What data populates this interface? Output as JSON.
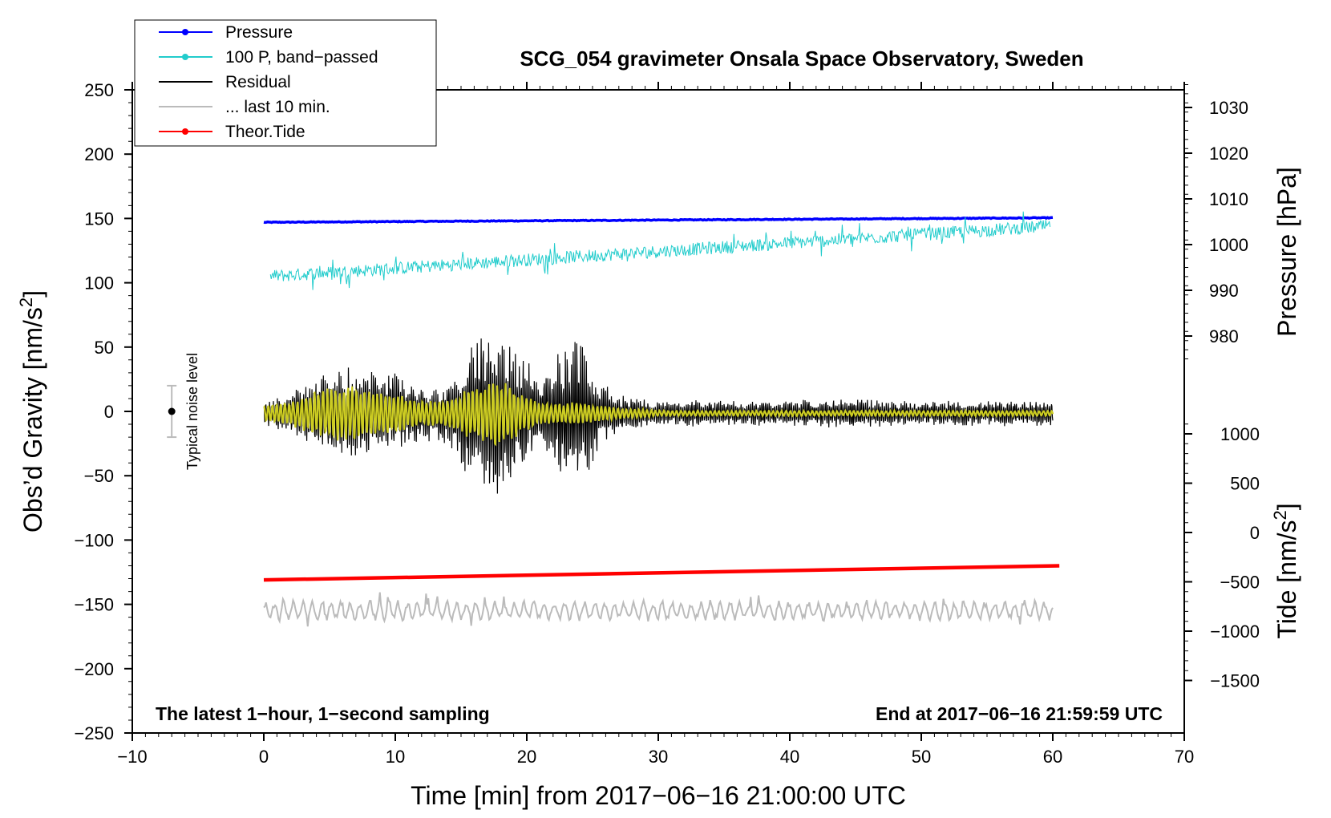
{
  "chart_data": {
    "type": "line",
    "title": "SCG_054 gravimeter Onsala Space Observatory, Sweden",
    "xlabel": "Time [min] from 2017−06−16 21:00:00 UTC",
    "ylabel": "Obs’d Gravity [nm/s",
    "ylabel_sup": "2",
    "ylabel_close": "]",
    "y2label": "Pressure [hPa]",
    "y3label": "Tide [nm/s",
    "y3label_sup": "2",
    "y3label_close": "]",
    "xlim": [
      -10,
      70
    ],
    "ylim": [
      -250,
      250
    ],
    "x_ticks": [
      "−10",
      "0",
      "10",
      "20",
      "30",
      "40",
      "50",
      "60",
      "70"
    ],
    "y_ticks": [
      "250",
      "200",
      "150",
      "100",
      "50",
      "0",
      "−50",
      "−100",
      "−150",
      "−200",
      "−250"
    ],
    "pressure_axis": {
      "ticks": [
        "1030",
        "1020",
        "1010",
        "1000",
        "990",
        "980"
      ],
      "values": [
        1030,
        1020,
        1010,
        1000,
        990,
        980
      ]
    },
    "tide_axis": {
      "ticks": [
        "1000",
        "500",
        "0",
        "−500",
        "−1000",
        "−1500"
      ],
      "values": [
        1000,
        500,
        0,
        -500,
        -1000,
        -1500
      ]
    },
    "note_left": "The latest 1−hour, 1−second sampling",
    "note_right": "End at 2017−06−16 21:59:59 UTC",
    "noise_label": "Typical noise level",
    "noise_bar": {
      "x": -7,
      "center": 0,
      "half_range": 20
    },
    "legend": [
      {
        "label": "Pressure",
        "color": "#0000ff",
        "marker": true
      },
      {
        "label": "100 P, band−passed",
        "color": "#22cccc",
        "marker": true
      },
      {
        "label": "Residual",
        "color": "#000000",
        "marker": false
      },
      {
        "label": "... last 10 min.",
        "color": "#bbbbbb",
        "marker": false
      },
      {
        "label": "Theor.Tide",
        "color": "#ff0000",
        "marker": true
      }
    ],
    "series": [
      {
        "name": "Pressure",
        "color": "#0000ff",
        "x_range": [
          0,
          60
        ],
        "start": 147,
        "end": 150.5,
        "style": "linear"
      },
      {
        "name": "100 P, band−passed",
        "color": "#22cccc",
        "x_range": [
          0.5,
          59.8
        ],
        "start": 105,
        "end": 144,
        "noise": 5,
        "style": "noisy"
      },
      {
        "name": "Theor.Tide",
        "color": "#ff0000",
        "x_range": [
          0,
          60.5
        ],
        "start": -131,
        "end": -120,
        "style": "linear"
      },
      {
        "name": "Residual",
        "color": "#000000",
        "x_range": [
          0,
          60
        ],
        "style": "envelope",
        "envelope_t": [
          0,
          2,
          4,
          6,
          8,
          10,
          12,
          14,
          15.5,
          16.5,
          17.5,
          18.5,
          19.5,
          21,
          22.5,
          23.5,
          24.5,
          25.5,
          27,
          29,
          31,
          33,
          36,
          40,
          45,
          50,
          55,
          60
        ],
        "envelope_a": [
          8,
          14,
          24,
          32,
          30,
          27,
          18,
          22,
          42,
          55,
          70,
          48,
          40,
          26,
          44,
          56,
          44,
          24,
          13,
          10,
          8,
          10,
          8,
          9,
          10,
          8,
          9,
          8
        ]
      },
      {
        "name": "Residual (filtered)",
        "color": "#cccc22",
        "x_range": [
          0,
          60
        ],
        "style": "envelope",
        "envelope_t": [
          0,
          2,
          4,
          6,
          8,
          10,
          12,
          14,
          15.5,
          16.5,
          17.5,
          18.5,
          19.5,
          21,
          22.5,
          23.5,
          24.5,
          25.5,
          27,
          29,
          31,
          33,
          36,
          40,
          60
        ],
        "envelope_a": [
          5,
          9,
          17,
          21,
          18,
          15,
          9,
          10,
          18,
          20,
          24,
          22,
          15,
          8,
          7,
          8,
          7,
          6,
          4,
          3,
          2,
          2,
          2,
          2,
          2
        ]
      },
      {
        "name": "... last 10 min.",
        "color": "#bbbbbb",
        "x_range": [
          0,
          60
        ],
        "center": -155,
        "amplitude": 7,
        "style": "wiggle"
      }
    ]
  }
}
